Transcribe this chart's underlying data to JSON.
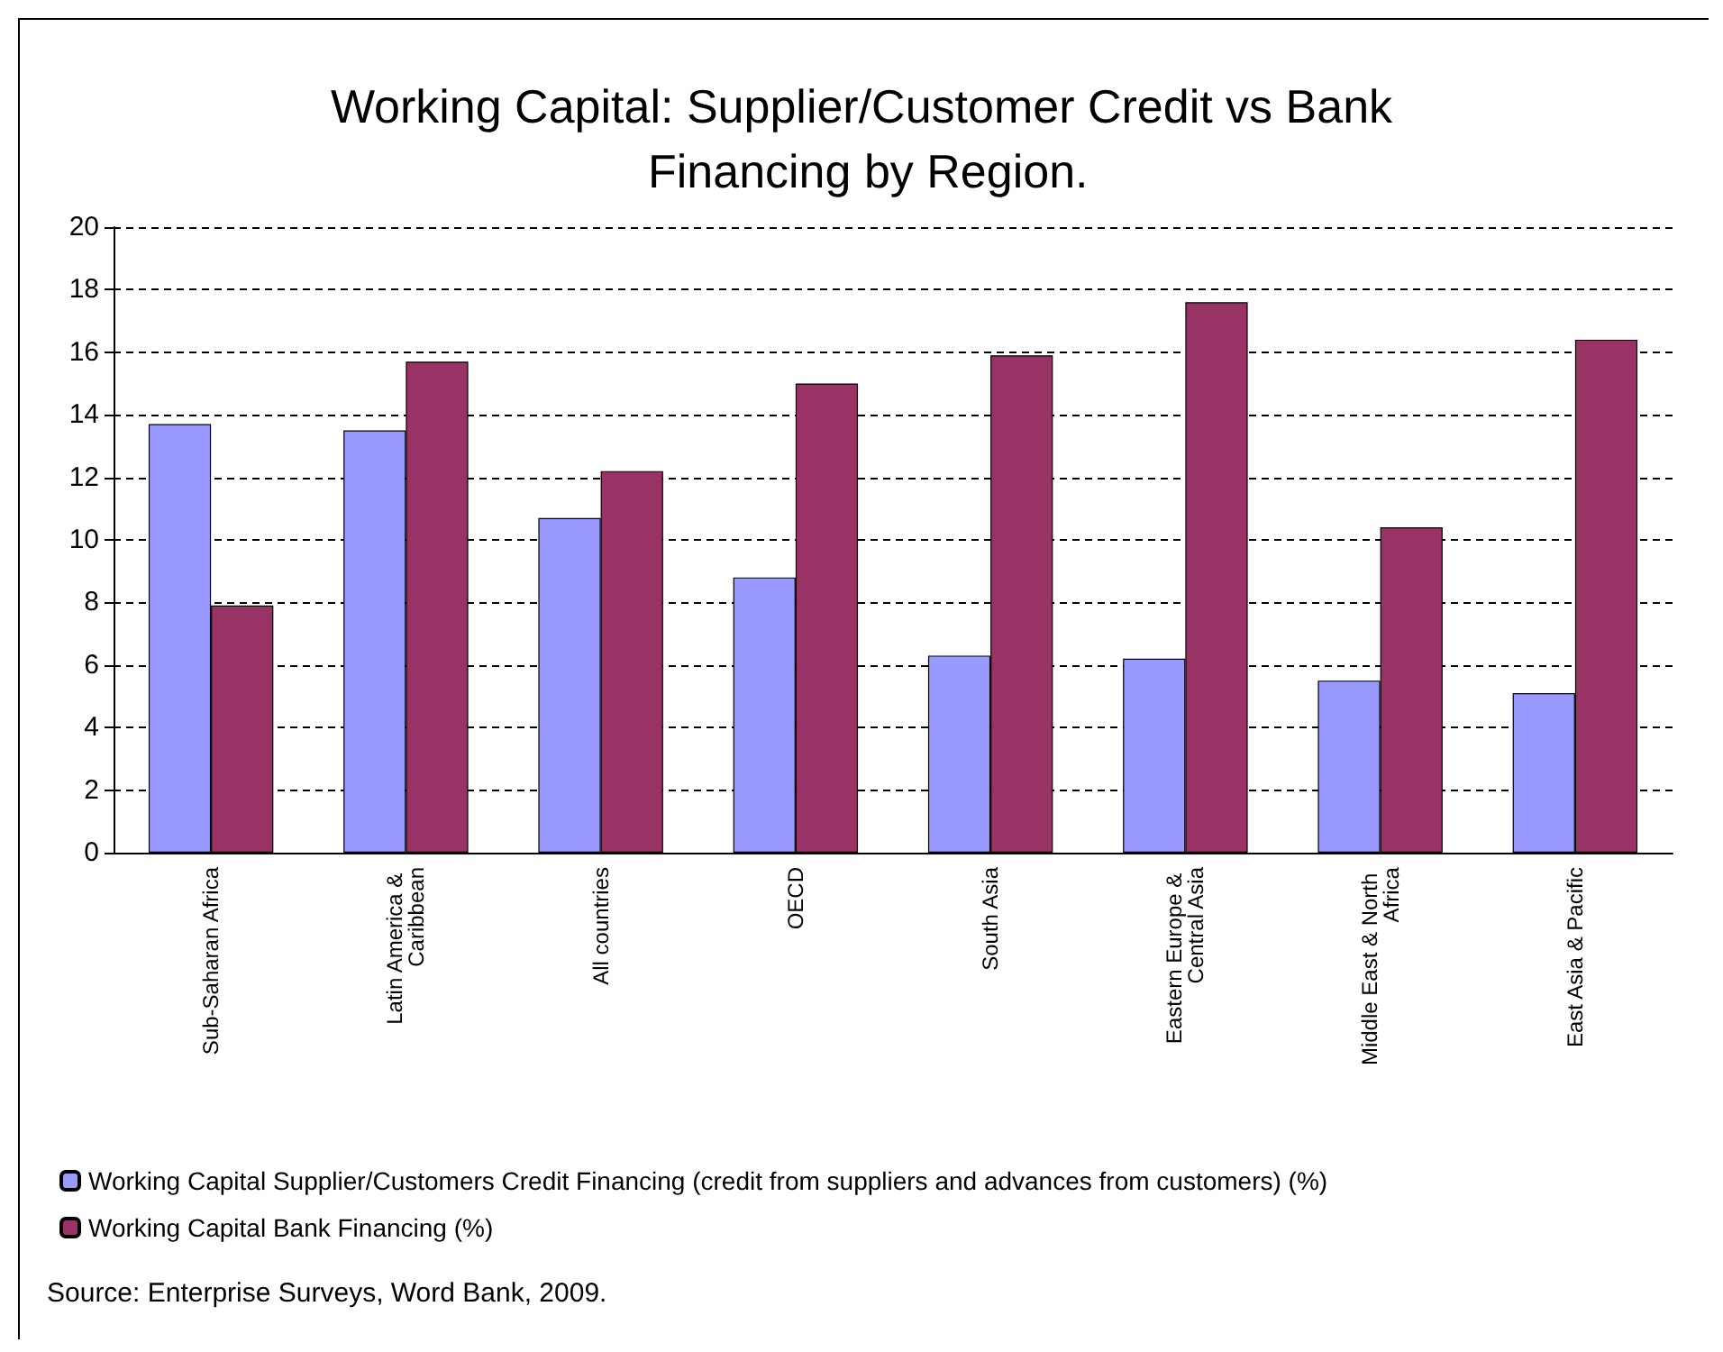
{
  "chart_data": {
    "type": "bar",
    "title": "Working Capital: Supplier/Customer Credit vs Bank Financing by Region.",
    "categories": [
      "Sub-Saharan Africa",
      "Latin America & Caribbean",
      "All countries",
      "OECD",
      "South Asia",
      "Eastern Europe & Central Asia",
      "Middle East & North Africa",
      "East Asia & Pacific"
    ],
    "series": [
      {
        "name": "Working Capital Supplier/Customers Credit Financing (credit from suppliers and advances from customers) (%)",
        "color": "#9999ff",
        "values": [
          13.7,
          13.5,
          10.7,
          8.8,
          6.3,
          6.2,
          5.5,
          5.1
        ]
      },
      {
        "name": "Working Capital Bank Financing (%)",
        "color": "#993366",
        "values": [
          7.9,
          15.7,
          12.2,
          15.0,
          15.9,
          17.6,
          10.4,
          16.4
        ]
      }
    ],
    "ylim": [
      0,
      20
    ],
    "yticks": [
      0,
      2,
      4,
      6,
      8,
      10,
      12,
      14,
      16,
      18,
      20
    ],
    "grid": "y",
    "legend": "bottom",
    "annotations": [
      "Source: Enterprise Surveys, Word Bank, 2009."
    ]
  }
}
